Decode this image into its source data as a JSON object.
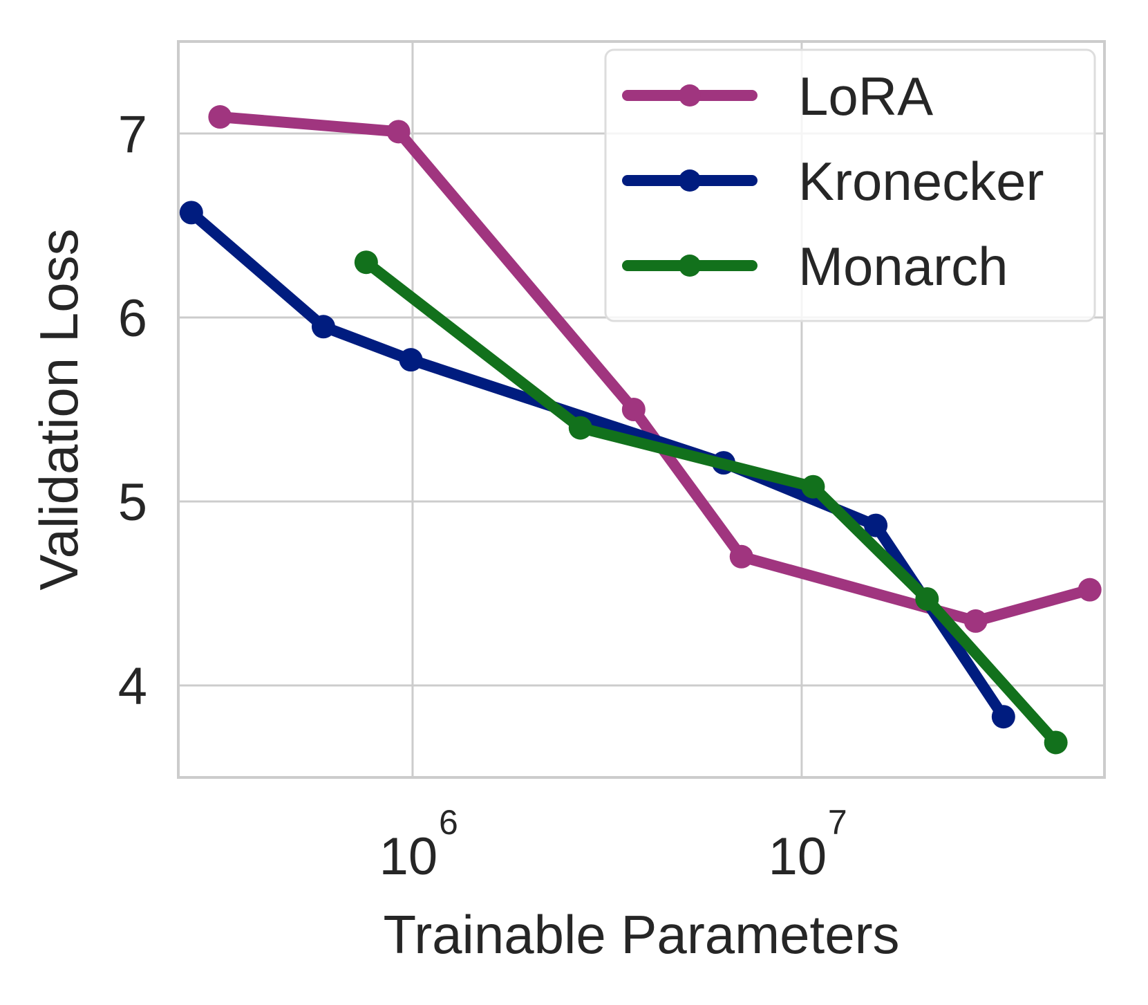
{
  "chart_data": {
    "type": "line",
    "xlabel": "Trainable Parameters",
    "ylabel": "Validation Loss",
    "xscale": "log",
    "xlim": [
      250000,
      60000000
    ],
    "ylim": [
      3.5,
      7.5
    ],
    "x_ticks": [
      {
        "base": "10",
        "exp": "6",
        "value": 1000000
      },
      {
        "base": "10",
        "exp": "7",
        "value": 10000000
      }
    ],
    "y_ticks": [
      {
        "label": "4",
        "value": 4
      },
      {
        "label": "5",
        "value": 5
      },
      {
        "label": "6",
        "value": 6
      },
      {
        "label": "7",
        "value": 7
      }
    ],
    "grid": true,
    "legend_position": "top-right",
    "series": [
      {
        "name": "LoRA",
        "color": "#a0357f",
        "x": [
          320000,
          920000,
          3700000,
          7000000,
          28000000,
          55000000
        ],
        "y": [
          7.09,
          7.01,
          5.5,
          4.7,
          4.35,
          4.52
        ]
      },
      {
        "name": "Kronecker",
        "color": "#001c7f",
        "x": [
          270000,
          590000,
          990000,
          6300000,
          15500000,
          33000000
        ],
        "y": [
          6.57,
          5.95,
          5.77,
          5.21,
          4.87,
          3.83
        ]
      },
      {
        "name": "Monarch",
        "color": "#12711c",
        "x": [
          760000,
          2700000,
          10700000,
          21000000,
          45000000
        ],
        "y": [
          6.3,
          5.4,
          5.08,
          4.47,
          3.69
        ]
      }
    ]
  }
}
